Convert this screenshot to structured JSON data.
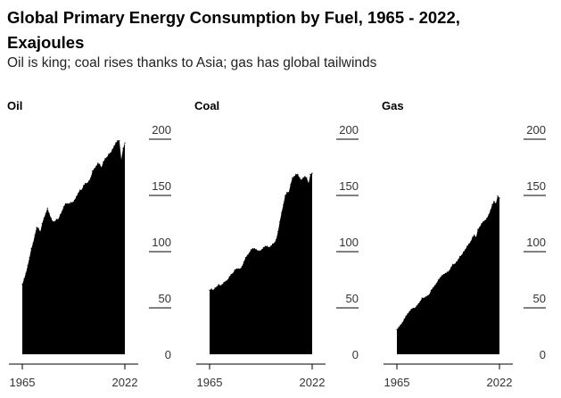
{
  "title_line1": "Global Primary Energy Consumption by Fuel, 1965 - 2022,",
  "title_line2": "Exajoules",
  "subtitle": "Oil is king; coal rises thanks to Asia; gas has global tailwinds",
  "colors": {
    "fill": "#000000",
    "text": "#000000",
    "rule": "#000000"
  },
  "chart_data": [
    {
      "type": "area",
      "title": "Oil",
      "xlabel": "",
      "ylabel": "",
      "xlim": [
        1965,
        2022
      ],
      "ylim": [
        0,
        200
      ],
      "xticks": [
        1965,
        2022
      ],
      "xtick_labels": [
        "1965",
        "2022"
      ],
      "yticks": [
        0,
        50,
        100,
        150,
        200
      ],
      "ytick_labels": [
        "0",
        "50",
        "100",
        "150",
        "200"
      ],
      "x": [
        1965,
        1966,
        1967,
        1968,
        1969,
        1970,
        1971,
        1972,
        1973,
        1974,
        1975,
        1976,
        1977,
        1978,
        1979,
        1980,
        1981,
        1982,
        1983,
        1984,
        1985,
        1986,
        1987,
        1988,
        1989,
        1990,
        1991,
        1992,
        1993,
        1994,
        1995,
        1996,
        1997,
        1998,
        1999,
        2000,
        2001,
        2002,
        2003,
        2004,
        2005,
        2006,
        2007,
        2008,
        2009,
        2010,
        2011,
        2012,
        2013,
        2014,
        2015,
        2016,
        2017,
        2018,
        2019,
        2020,
        2021,
        2022
      ],
      "values": [
        62,
        67,
        72,
        79,
        86,
        94,
        99,
        106,
        113,
        112,
        109,
        116,
        121,
        125,
        130,
        125,
        121,
        118,
        118,
        120,
        120,
        124,
        127,
        131,
        134,
        134,
        134,
        135,
        135,
        137,
        140,
        143,
        146,
        146,
        150,
        152,
        152,
        154,
        157,
        163,
        165,
        167,
        170,
        169,
        166,
        171,
        174,
        175,
        178,
        179,
        182,
        185,
        188,
        190,
        190,
        173,
        183,
        188
      ]
    },
    {
      "type": "area",
      "title": "Coal",
      "xlabel": "",
      "ylabel": "",
      "xlim": [
        1965,
        2022
      ],
      "ylim": [
        0,
        200
      ],
      "xticks": [
        1965,
        2022
      ],
      "xtick_labels": [
        "1965",
        "2022"
      ],
      "yticks": [
        0,
        50,
        100,
        150,
        200
      ],
      "ytick_labels": [
        "0",
        "50",
        "100",
        "150",
        "200"
      ],
      "x": [
        1965,
        1966,
        1967,
        1968,
        1969,
        1970,
        1971,
        1972,
        1973,
        1974,
        1975,
        1976,
        1977,
        1978,
        1979,
        1980,
        1981,
        1982,
        1983,
        1984,
        1985,
        1986,
        1987,
        1988,
        1989,
        1990,
        1991,
        1992,
        1993,
        1994,
        1995,
        1996,
        1997,
        1998,
        1999,
        2000,
        2001,
        2002,
        2003,
        2004,
        2005,
        2006,
        2007,
        2008,
        2009,
        2010,
        2011,
        2012,
        2013,
        2014,
        2015,
        2016,
        2017,
        2018,
        2019,
        2020,
        2021,
        2022
      ],
      "values": [
        57,
        58,
        57,
        59,
        60,
        62,
        61,
        62,
        64,
        65,
        66,
        69,
        71,
        72,
        75,
        76,
        76,
        76,
        78,
        82,
        86,
        88,
        90,
        93,
        94,
        94,
        93,
        92,
        92,
        93,
        95,
        96,
        96,
        95,
        96,
        98,
        99,
        102,
        109,
        118,
        126,
        133,
        141,
        144,
        144,
        151,
        157,
        158,
        160,
        160,
        157,
        155,
        157,
        158,
        157,
        152,
        160,
        161
      ]
    },
    {
      "type": "area",
      "title": "Gas",
      "xlabel": "",
      "ylabel": "",
      "xlim": [
        1965,
        2022
      ],
      "ylim": [
        0,
        200
      ],
      "xticks": [
        1965,
        2022
      ],
      "xtick_labels": [
        "1965",
        "2022"
      ],
      "yticks": [
        0,
        50,
        100,
        150,
        200
      ],
      "ytick_labels": [
        "0",
        "50",
        "100",
        "150",
        "200"
      ],
      "x": [
        1965,
        1966,
        1967,
        1968,
        1969,
        1970,
        1971,
        1972,
        1973,
        1974,
        1975,
        1976,
        1977,
        1978,
        1979,
        1980,
        1981,
        1982,
        1983,
        1984,
        1985,
        1986,
        1987,
        1988,
        1989,
        1990,
        1991,
        1992,
        1993,
        1994,
        1995,
        1996,
        1997,
        1998,
        1999,
        2000,
        2001,
        2002,
        2003,
        2004,
        2005,
        2006,
        2007,
        2008,
        2009,
        2010,
        2011,
        2012,
        2013,
        2014,
        2015,
        2016,
        2017,
        2018,
        2019,
        2020,
        2021,
        2022
      ],
      "values": [
        22,
        24,
        26,
        28,
        31,
        34,
        36,
        38,
        40,
        41,
        41,
        43,
        45,
        47,
        50,
        50,
        51,
        52,
        53,
        57,
        59,
        61,
        63,
        66,
        68,
        70,
        71,
        72,
        73,
        74,
        77,
        80,
        80,
        82,
        84,
        87,
        88,
        91,
        93,
        96,
        98,
        100,
        104,
        106,
        104,
        111,
        113,
        116,
        118,
        119,
        121,
        124,
        128,
        133,
        136,
        134,
        141,
        139
      ]
    }
  ]
}
